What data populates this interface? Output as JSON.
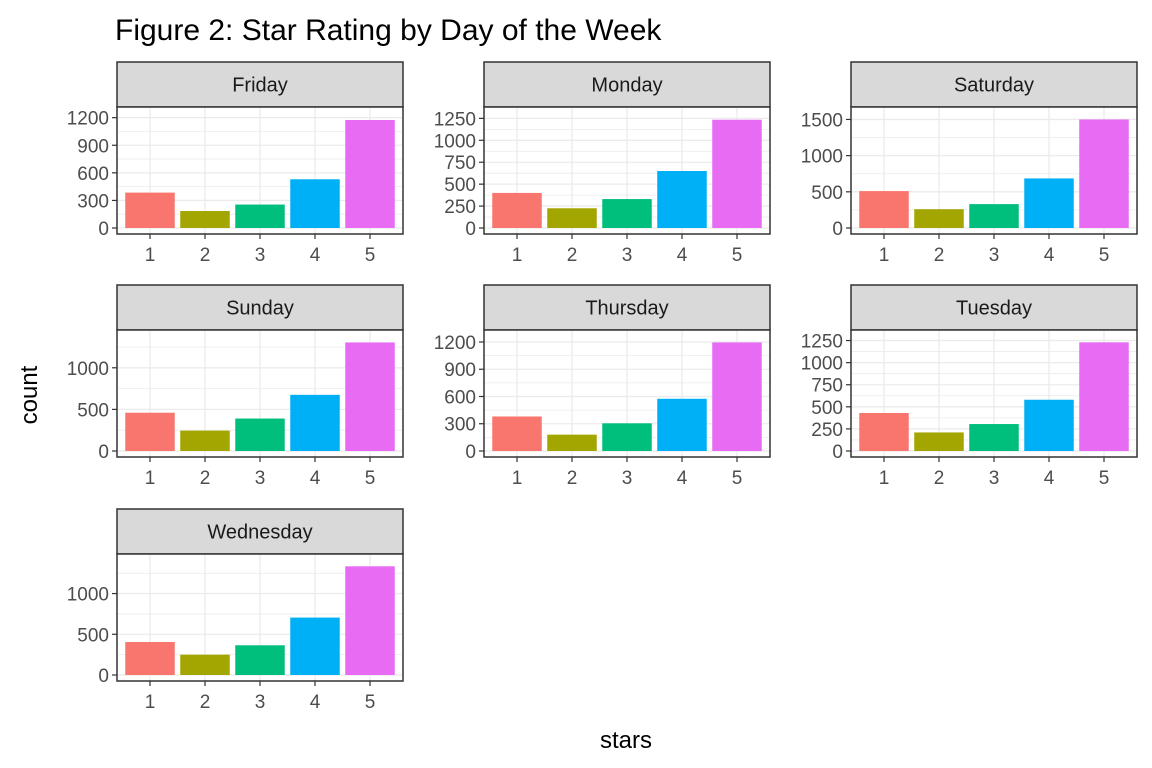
{
  "chart_data": {
    "type": "bar",
    "title": "Figure 2: Star Rating by Day of the Week",
    "xlabel": "stars",
    "ylabel": "count",
    "categories": [
      "1",
      "2",
      "3",
      "4",
      "5"
    ],
    "bar_colors": [
      "#F8766D",
      "#A3A500",
      "#00BF7D",
      "#00B0F6",
      "#E76BF3"
    ],
    "strip_fill": "#D9D9D9",
    "grid_color": "#EBEBEB",
    "panel_border": "#333333",
    "legend": "none",
    "grid": true,
    "panels": [
      {
        "facet": "Friday",
        "values": [
          385,
          185,
          255,
          530,
          1175
        ],
        "ylim": [
          0,
          1240
        ],
        "yticks": [
          0,
          300,
          600,
          900,
          1200
        ]
      },
      {
        "facet": "Monday",
        "values": [
          400,
          225,
          330,
          650,
          1235
        ],
        "ylim": [
          0,
          1300
        ],
        "yticks": [
          0,
          250,
          500,
          750,
          1000,
          1250
        ]
      },
      {
        "facet": "Saturday",
        "values": [
          510,
          260,
          330,
          685,
          1500
        ],
        "ylim": [
          0,
          1575
        ],
        "yticks": [
          0,
          500,
          1000,
          1500
        ]
      },
      {
        "facet": "Sunday",
        "values": [
          460,
          245,
          390,
          675,
          1305
        ],
        "ylim": [
          0,
          1370
        ],
        "yticks": [
          0,
          500,
          1000
        ]
      },
      {
        "facet": "Thursday",
        "values": [
          380,
          180,
          305,
          575,
          1195
        ],
        "ylim": [
          0,
          1255
        ],
        "yticks": [
          0,
          300,
          600,
          900,
          1200
        ]
      },
      {
        "facet": "Tuesday",
        "values": [
          430,
          210,
          305,
          580,
          1230
        ],
        "ylim": [
          0,
          1290
        ],
        "yticks": [
          0,
          250,
          500,
          750,
          1000,
          1250
        ]
      },
      {
        "facet": "Wednesday",
        "values": [
          405,
          250,
          365,
          705,
          1335
        ],
        "ylim": [
          0,
          1400
        ],
        "yticks": [
          0,
          500,
          1000
        ]
      }
    ]
  }
}
